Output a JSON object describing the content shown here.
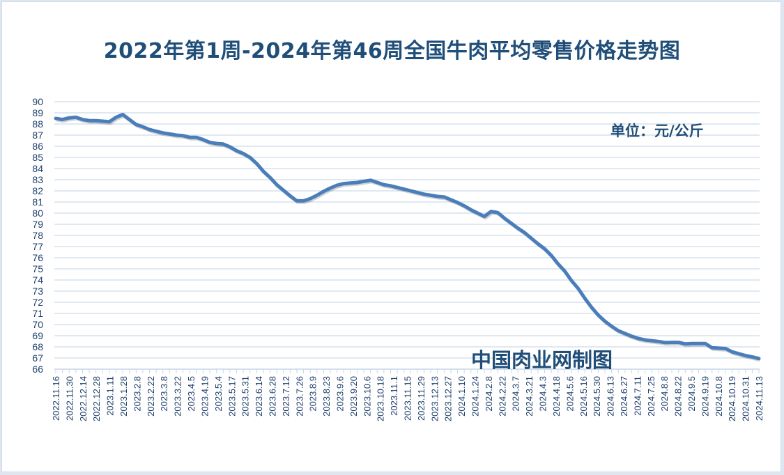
{
  "chart_data": {
    "type": "line",
    "title": "2022年第1周-2024年第46周全国牛肉平均零售价格走势图",
    "unit_label": "单位：元/公斤",
    "source_label": "中国肉业网制图",
    "xlabel": "",
    "ylabel": "",
    "ylim": [
      66,
      90
    ],
    "yticks": [
      66,
      67,
      68,
      69,
      70,
      71,
      72,
      73,
      74,
      75,
      76,
      77,
      78,
      79,
      80,
      81,
      82,
      83,
      84,
      85,
      86,
      87,
      88,
      89,
      90
    ],
    "grid": true,
    "legend": "none",
    "line_color": "#4a7ebb",
    "x_tick_labels": [
      "2022.11.16",
      "2022.11.30",
      "2022.12.14",
      "2022.12.28",
      "2023.1.11",
      "2023.1.28",
      "2023.2.8",
      "2023.2.22",
      "2023.3.8",
      "2023.3.22",
      "2023.4.5",
      "2023.4.19",
      "2023.5.4",
      "2023.5.17",
      "2023.5.31",
      "2023.6.14",
      "2023.6.28",
      "2023.7.12",
      "2023.7.26",
      "2023.8.9",
      "2023.8.23",
      "2023.9.6",
      "2023.9.20",
      "2023.10.6",
      "2023.10.18",
      "2023.11.1",
      "2023.11.15",
      "2023.11.29",
      "2023.12.13",
      "2023.12.27",
      "2024.1.10",
      "2024.1.24",
      "2024.2.8",
      "2024.2.22",
      "2024.3.7",
      "2024.3.21",
      "2024.4.3",
      "2024.4.18",
      "2024.5.6",
      "2024.5.16",
      "2024.5.30",
      "2024.6.13",
      "2024.6.27",
      "2024.7.11",
      "2024.7.25",
      "2024.8.8",
      "2024.8.22",
      "2024.9.5",
      "2024.9.19",
      "2024.10.8",
      "2024.10.19",
      "2024.10.31",
      "2024.11.13"
    ],
    "series": [
      {
        "name": "全国牛肉平均零售价格",
        "values": [
          88.5,
          88.4,
          88.55,
          88.6,
          88.4,
          88.3,
          88.3,
          88.25,
          88.2,
          88.6,
          88.85,
          88.4,
          87.95,
          87.75,
          87.5,
          87.35,
          87.2,
          87.1,
          87.0,
          86.95,
          86.8,
          86.8,
          86.6,
          86.35,
          86.25,
          86.2,
          85.95,
          85.6,
          85.35,
          85.0,
          84.45,
          83.75,
          83.2,
          82.55,
          82.05,
          81.55,
          81.1,
          81.1,
          81.3,
          81.6,
          81.95,
          82.25,
          82.5,
          82.65,
          82.7,
          82.75,
          82.85,
          82.95,
          82.75,
          82.55,
          82.45,
          82.3,
          82.15,
          82.0,
          81.85,
          81.7,
          81.6,
          81.5,
          81.45,
          81.2,
          80.95,
          80.65,
          80.3,
          80.0,
          79.7,
          80.15,
          80.05,
          79.55,
          79.1,
          78.65,
          78.25,
          77.75,
          77.25,
          76.8,
          76.2,
          75.45,
          74.8,
          73.95,
          73.25,
          72.35,
          71.55,
          70.85,
          70.3,
          69.85,
          69.45,
          69.2,
          68.95,
          68.75,
          68.62,
          68.55,
          68.48,
          68.38,
          68.4,
          68.4,
          68.26,
          68.3,
          68.3,
          68.3,
          67.92,
          67.88,
          67.85,
          67.55,
          67.38,
          67.22,
          67.1,
          66.95
        ]
      }
    ]
  }
}
